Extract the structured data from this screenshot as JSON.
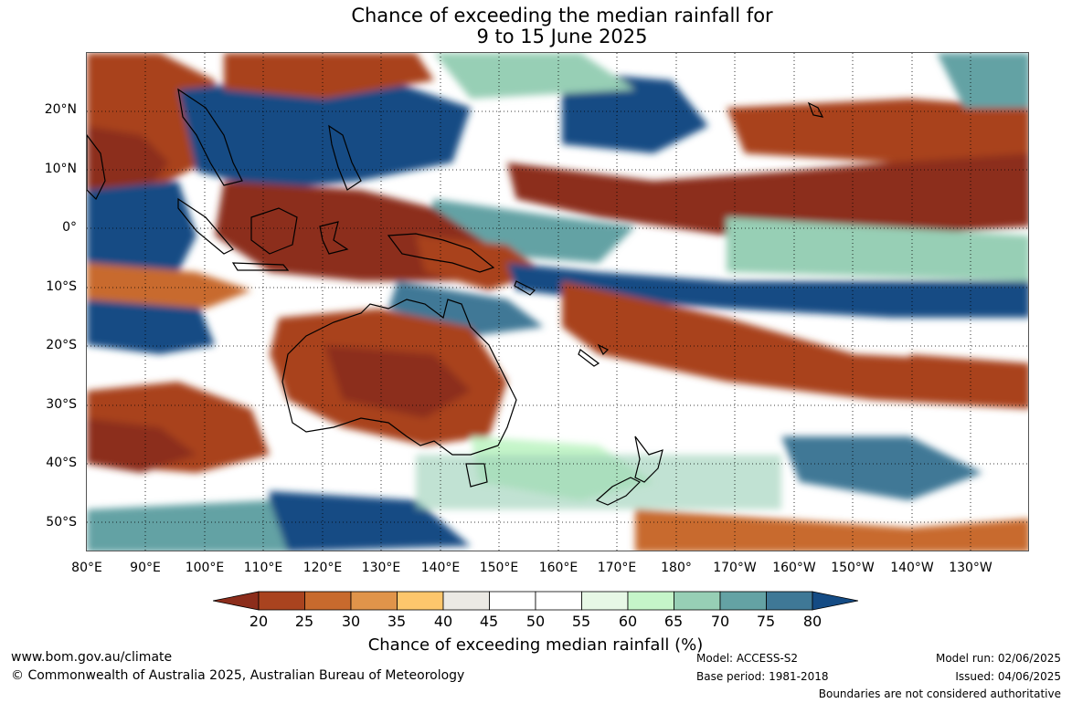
{
  "title": {
    "line1": "Chance of exceeding the median rainfall for",
    "line2": "9 to 15 June 2025"
  },
  "map": {
    "latitude_labels": [
      "20°N",
      "10°N",
      "0°",
      "10°S",
      "20°S",
      "30°S",
      "40°S",
      "50°S"
    ],
    "longitude_labels": [
      "80°E",
      "90°E",
      "100°E",
      "110°E",
      "120°E",
      "130°E",
      "140°E",
      "150°E",
      "160°E",
      "170°E",
      "180°",
      "170°W",
      "160°W",
      "150°W",
      "140°W",
      "130°W"
    ]
  },
  "legend": {
    "title": "Chance of exceeding median rainfall (%)",
    "labels": [
      "20",
      "25",
      "30",
      "35",
      "40",
      "45",
      "50",
      "55",
      "60",
      "65",
      "70",
      "75",
      "80"
    ],
    "colors": [
      "#8c2d1b",
      "#a9431f",
      "#c86a2d",
      "#e0944a",
      "#fdc66c",
      "#ebe9e4",
      "#ffffff",
      "#ffffff",
      "#e7f8e6",
      "#c5f5c9",
      "#97cfb5",
      "#64a2a4",
      "#3f7896",
      "#144b84"
    ]
  },
  "footer": {
    "website": "www.bom.gov.au/climate",
    "copyright": "© Commonwealth of Australia 2025, Australian Bureau of Meteorology",
    "model": "Model: ACCESS-S2",
    "base_period": "Base period: 1981-2018",
    "model_run": "Model run: 02/06/2025",
    "issued": "Issued: 04/06/2025",
    "disclaimer": "Boundaries are not considered authoritative"
  }
}
